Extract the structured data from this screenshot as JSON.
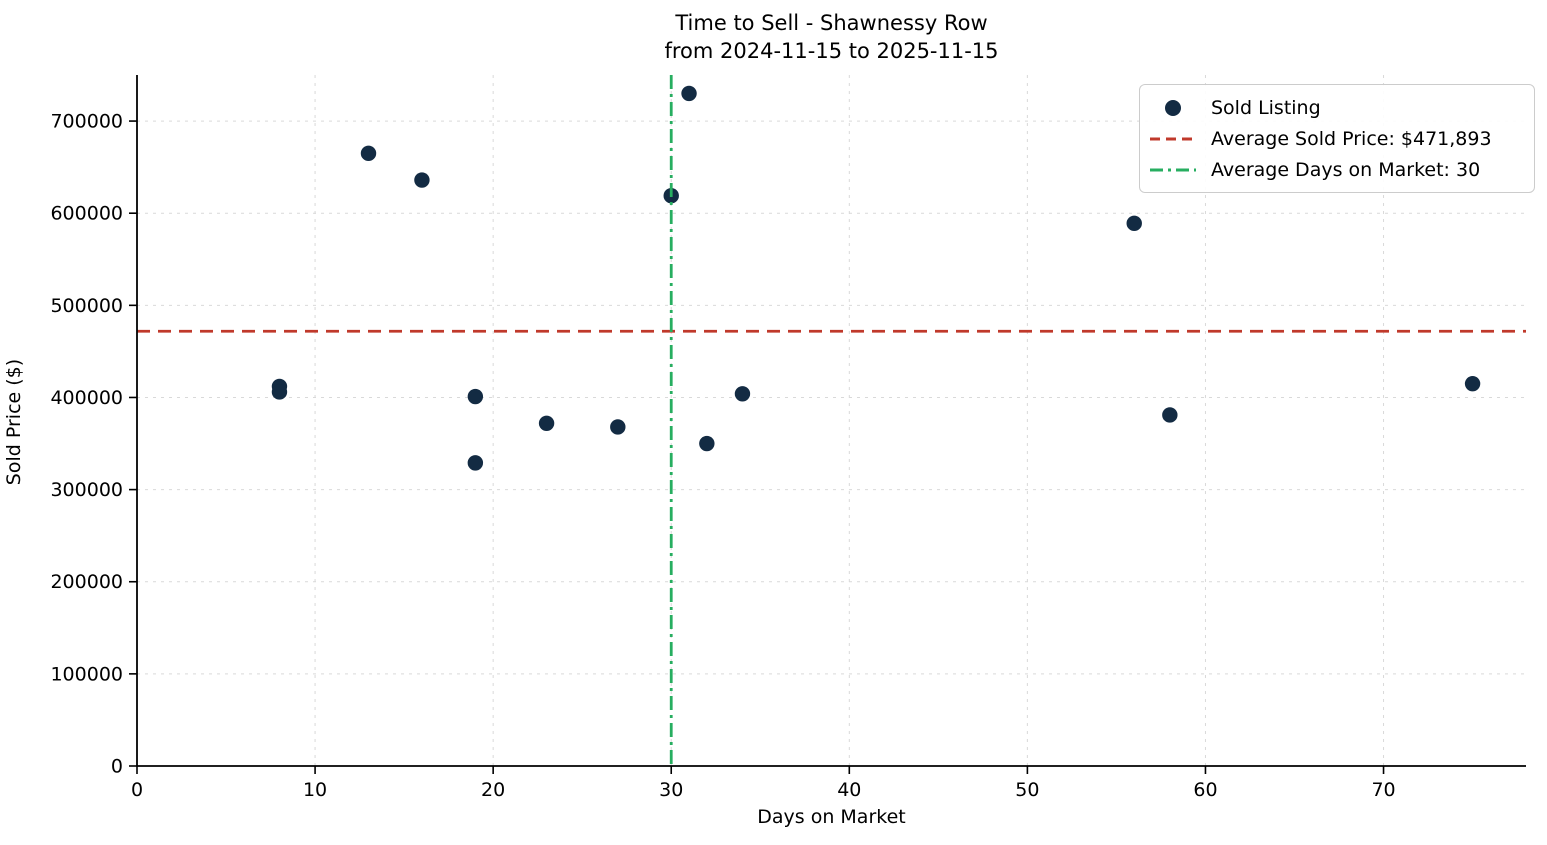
{
  "figure": {
    "title": "Time to Sell - Shawnessy Row",
    "subtitle": "from 2024-11-15 to 2025-11-15"
  },
  "chart_data": {
    "type": "scatter",
    "title": "Time to Sell - Shawnessy Row",
    "subtitle": "from 2024-11-15 to 2025-11-15",
    "xlabel": "Days on Market",
    "ylabel": "Sold Price ($)",
    "xlim": [
      0,
      78
    ],
    "ylim": [
      0,
      750000
    ],
    "xticks": [
      0,
      10,
      20,
      30,
      40,
      50,
      60,
      70
    ],
    "yticks": [
      0,
      100000,
      200000,
      300000,
      400000,
      500000,
      600000,
      700000
    ],
    "grid": true,
    "legend_position": "upper right",
    "series": [
      {
        "name": "Sold Listing",
        "points": [
          {
            "days_on_market": 8,
            "sold_price": 412000
          },
          {
            "days_on_market": 8,
            "sold_price": 406000
          },
          {
            "days_on_market": 13,
            "sold_price": 665000
          },
          {
            "days_on_market": 16,
            "sold_price": 636000
          },
          {
            "days_on_market": 19,
            "sold_price": 401000
          },
          {
            "days_on_market": 19,
            "sold_price": 329000
          },
          {
            "days_on_market": 23,
            "sold_price": 372000
          },
          {
            "days_on_market": 27,
            "sold_price": 368000
          },
          {
            "days_on_market": 30,
            "sold_price": 619000
          },
          {
            "days_on_market": 31,
            "sold_price": 730000
          },
          {
            "days_on_market": 32,
            "sold_price": 350000
          },
          {
            "days_on_market": 34,
            "sold_price": 404000
          },
          {
            "days_on_market": 56,
            "sold_price": 589000
          },
          {
            "days_on_market": 58,
            "sold_price": 381000
          },
          {
            "days_on_market": 75,
            "sold_price": 415000
          }
        ]
      }
    ],
    "reference_lines": {
      "average_sold_price": {
        "value": 471893,
        "orientation": "horizontal"
      },
      "average_days_on_market": {
        "value": 30,
        "orientation": "vertical"
      }
    },
    "legend": {
      "items": [
        {
          "label": "Sold Listing",
          "sample": "marker"
        },
        {
          "label": "Average Sold Price: $471,893",
          "sample": "dashed-line"
        },
        {
          "label": "Average Days on Market: 30",
          "sample": "dashdot-line"
        }
      ]
    },
    "colors": {
      "marker": "#132b43",
      "avg_price_line": "#c0392b",
      "avg_days_line": "#27ae60",
      "grid": "#d9d9d9",
      "axis": "#000000"
    }
  }
}
